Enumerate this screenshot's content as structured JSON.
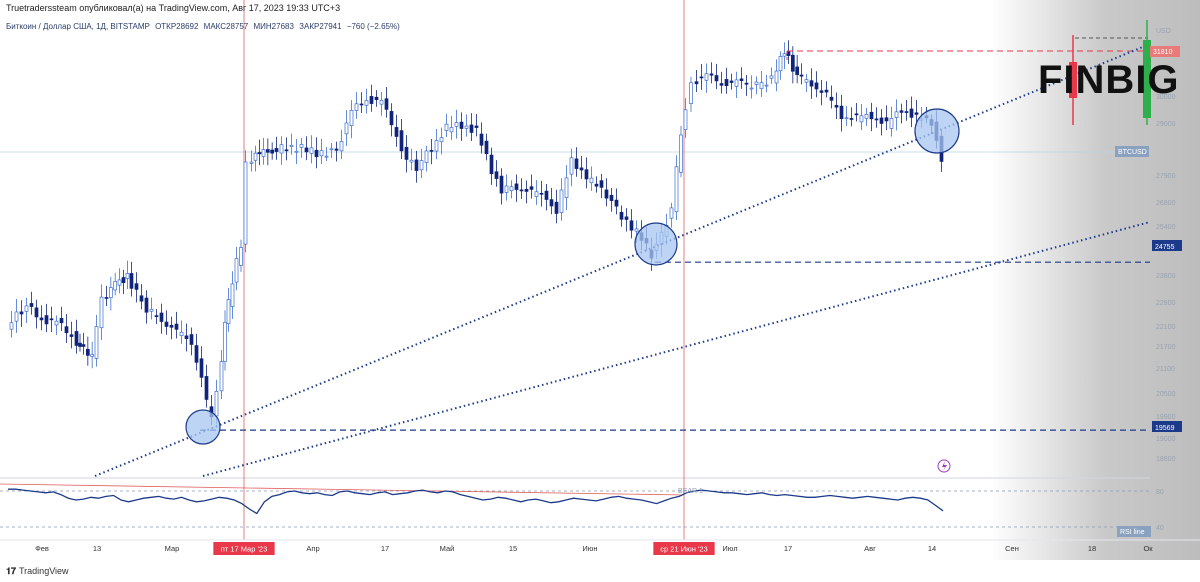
{
  "publisher_line": "Truetraderssteam опубликовал(а) на TradingView.com, Авг 17, 2023 19:33 UTC+3",
  "symbol_info": {
    "name": "Биткоин / Доллар США, 1Д, BITSTAMP",
    "open": "ОТКР28692",
    "high": "МАКС28757",
    "low": "МИН27683",
    "close": "ЗАКР27941",
    "change": "−760 (−2.65%)"
  },
  "footer": {
    "brand": "TradingView"
  },
  "logo": {
    "text": "FINBIG"
  },
  "colors": {
    "up": "#3d6fd1",
    "down": "#10257a",
    "trend": "#1c3a8a",
    "rsi": "#1c3a8a",
    "event_line": "#e06060",
    "highlight": "#e8384a",
    "circle_fill": "#a8c6f0"
  },
  "icons": {
    "lightning": "lightning-icon",
    "tv_logo": "tradingview-logo-icon"
  },
  "chart_data": {
    "type": "candlestick",
    "symbol": "BTCUSD",
    "yaxis_ticks": [
      "USD",
      "30000",
      "29000",
      "27900",
      "26800",
      "25400",
      "24755",
      "23800",
      "22800",
      "22100",
      "21700",
      "21100",
      "20500",
      "19900",
      "19569",
      "19000",
      "18800"
    ],
    "xaxis_ticks": [
      "Фев",
      "13",
      "Мар",
      "пт 17 Мар '23",
      "Апр",
      "17",
      "Май",
      "15",
      "Июн",
      "ср 21 Июн '23",
      "Июл",
      "17",
      "Авг",
      "14",
      "Сен",
      "18",
      "Ок"
    ],
    "price_labels": {
      "last": "BTCUSD",
      "level_high": "31810",
      "level_mid": "24755",
      "level_low": "19569"
    },
    "horizontal_levels": [
      19569,
      24755,
      31810
    ],
    "event_dates": [
      "пт 17 Мар '23",
      "ср 21 Июн '23"
    ],
    "rsi": {
      "label": "RSI line",
      "levels": [
        80,
        40
      ],
      "annotation": "BEAR 1",
      "values": [
        82,
        82,
        81,
        80,
        79,
        78,
        79,
        76,
        72,
        70,
        71,
        73,
        72,
        74,
        75,
        70,
        68,
        70,
        72,
        73,
        74,
        72,
        71,
        73,
        70,
        68,
        69,
        71,
        73,
        72,
        70,
        66,
        60,
        55,
        68,
        74,
        76,
        79,
        80,
        78,
        77,
        78,
        76,
        75,
        79,
        80,
        78,
        77,
        76,
        78,
        79,
        76,
        77,
        78,
        80,
        81,
        79,
        78,
        80,
        79,
        76,
        74,
        72,
        70,
        71,
        73,
        72,
        70,
        68,
        70,
        71,
        69,
        67,
        68,
        70,
        72,
        71,
        70,
        69,
        71,
        73,
        74,
        72,
        71,
        70,
        68,
        66,
        69,
        72,
        74,
        78,
        80,
        81,
        80,
        79,
        78,
        78,
        77,
        76,
        77,
        78,
        76,
        75,
        76,
        75,
        74,
        73,
        73,
        74,
        75,
        74,
        73,
        72,
        73,
        74,
        73,
        72,
        71,
        70,
        72,
        73,
        72,
        70,
        64,
        58
      ]
    }
  }
}
